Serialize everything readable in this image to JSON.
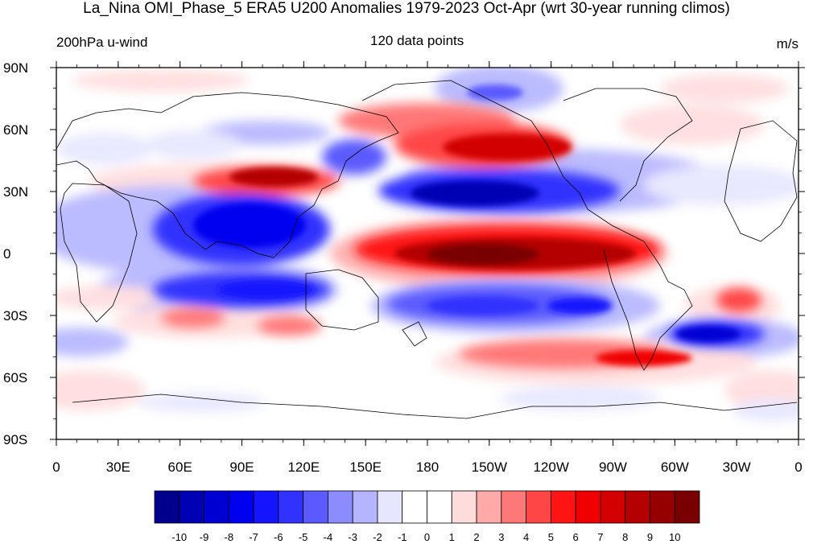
{
  "title": "La_Nina OMI_Phase_5 ERA5 U200 Anomalies 1979-2023 Oct-Apr (wrt 30-year running climos)",
  "left_label": "200hPa u-wind",
  "center_label": "120 data points",
  "right_label": "m/s",
  "lat_ticks": [
    "90N",
    "60N",
    "30N",
    "0",
    "30S",
    "60S",
    "90S"
  ],
  "lon_ticks": [
    "0",
    "30E",
    "60E",
    "90E",
    "120E",
    "150E",
    "180",
    "150W",
    "120W",
    "90W",
    "60W",
    "30W",
    "0"
  ],
  "colorbar": {
    "colors": [
      "#00008c",
      "#0000b4",
      "#0000d2",
      "#0000f0",
      "#1414ff",
      "#3232ff",
      "#5a5aff",
      "#8c8cff",
      "#b4b4ff",
      "#e6e6ff",
      "#ffffff",
      "#ffffff",
      "#ffdcdc",
      "#ffaaaa",
      "#ff7878",
      "#ff4646",
      "#ff1414",
      "#f00000",
      "#d20000",
      "#b40000",
      "#960000",
      "#780000"
    ],
    "labels": [
      "-10",
      "-9",
      "-8",
      "-7",
      "-6",
      "-5",
      "-4",
      "-3",
      "-2",
      "-1",
      "0",
      "1",
      "2",
      "3",
      "4",
      "5",
      "6",
      "7",
      "8",
      "9",
      "10"
    ]
  },
  "anomaly_features": [
    {
      "lon": 155,
      "lat": 28,
      "value": -10
    },
    {
      "lon": 190,
      "lat": 2,
      "value": 10
    },
    {
      "lon": 200,
      "lat": 48,
      "value": 8
    },
    {
      "lon": 110,
      "lat": 36,
      "value": 9
    },
    {
      "lon": 100,
      "lat": 15,
      "value": -7
    },
    {
      "lon": 110,
      "lat": -15,
      "value": -6
    },
    {
      "lon": 220,
      "lat": -25,
      "value": -6
    },
    {
      "lon": 300,
      "lat": -42,
      "value": -6
    },
    {
      "lon": 245,
      "lat": -52,
      "value": 6
    },
    {
      "lon": 330,
      "lat": -22,
      "value": 5
    }
  ]
}
